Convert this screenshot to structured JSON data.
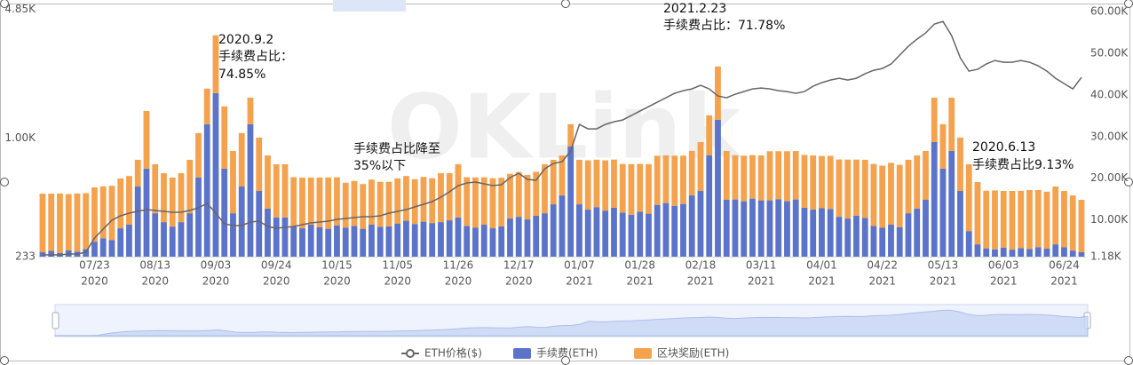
{
  "chart_data": {
    "type": "bar_line",
    "watermark": "OKLink",
    "ylog": true,
    "ylim": [
      233,
      4850
    ],
    "yticks": [
      233,
      {
        "value": 1000,
        "label": "1.00K"
      },
      {
        "value": 4850,
        "label": "4.85K"
      }
    ],
    "y2lim": [
      1180,
      60000
    ],
    "y2ticks": [
      {
        "value": 1180,
        "label": "1.18K"
      },
      {
        "value": 10000,
        "label": "10.00K"
      },
      {
        "value": 20000,
        "label": "20.00K"
      },
      {
        "value": 30000,
        "label": "30.00K"
      },
      {
        "value": 40000,
        "label": "40.00K"
      },
      {
        "value": 50000,
        "label": "50.00K"
      },
      {
        "value": 60000,
        "label": "60.00K"
      }
    ],
    "grid": false,
    "categories": [
      null,
      null,
      null,
      null,
      null,
      null,
      {
        "date": "07/23",
        "year": "2020"
      },
      null,
      null,
      null,
      null,
      null,
      null,
      {
        "date": "08/13",
        "year": "2020"
      },
      null,
      null,
      null,
      null,
      null,
      null,
      {
        "date": "09/03",
        "year": "2020"
      },
      null,
      null,
      null,
      null,
      null,
      null,
      {
        "date": "09/24",
        "year": "2020"
      },
      null,
      null,
      null,
      null,
      null,
      null,
      {
        "date": "10/15",
        "year": "2020"
      },
      null,
      null,
      null,
      null,
      null,
      null,
      {
        "date": "11/05",
        "year": "2020"
      },
      null,
      null,
      null,
      null,
      null,
      null,
      {
        "date": "11/26",
        "year": "2020"
      },
      null,
      null,
      null,
      null,
      null,
      null,
      {
        "date": "12/17",
        "year": "2020"
      },
      null,
      null,
      null,
      null,
      null,
      null,
      {
        "date": "01/07",
        "year": "2021"
      },
      null,
      null,
      null,
      null,
      null,
      null,
      {
        "date": "01/28",
        "year": "2021"
      },
      null,
      null,
      null,
      null,
      null,
      null,
      {
        "date": "02/18",
        "year": "2021"
      },
      null,
      null,
      null,
      null,
      null,
      null,
      {
        "date": "03/11",
        "year": "2021"
      },
      null,
      null,
      null,
      null,
      null,
      null,
      {
        "date": "04/01",
        "year": "2021"
      },
      null,
      null,
      null,
      null,
      null,
      null,
      {
        "date": "04/22",
        "year": "2021"
      },
      null,
      null,
      null,
      null,
      null,
      null,
      {
        "date": "05/13",
        "year": "2021"
      },
      null,
      null,
      null,
      null,
      null,
      null,
      {
        "date": "06/03",
        "year": "2021"
      },
      null,
      null,
      null,
      null,
      null,
      null,
      {
        "date": "06/24",
        "year": "2021"
      },
      null,
      null
    ],
    "series": [
      {
        "name": "ETH价格($)",
        "color": "#666666",
        "axis": "y2",
        "values": [
          1606,
          1606,
          1606,
          1819,
          1819,
          2245,
          5653,
          7783,
          9913,
          10978,
          11617,
          12043,
          12469,
          12256,
          12043,
          11830,
          11830,
          12256,
          12895,
          13960,
          11617,
          9061,
          8635,
          8635,
          9487,
          9700,
          8422,
          7996,
          8209,
          8422,
          8848,
          9274,
          9487,
          9700,
          10126,
          10339,
          10552,
          10765,
          10765,
          10978,
          11617,
          12043,
          12469,
          13108,
          13747,
          14386,
          15451,
          16729,
          18220,
          18859,
          19072,
          18646,
          18220,
          18433,
          20137,
          21202,
          19711,
          19498,
          22267,
          23545,
          23971,
          26527,
          32917,
          31852,
          31852,
          32917,
          33556,
          33982,
          35047,
          36112,
          37177,
          38242,
          39307,
          40372,
          41011,
          41437,
          42289,
          41437,
          39733,
          39307,
          40159,
          40798,
          41437,
          41650,
          41437,
          41011,
          40798,
          40372,
          40798,
          42076,
          42928,
          43567,
          43993,
          43567,
          43993,
          45058,
          45910,
          46336,
          47401,
          49531,
          51661,
          53365,
          54856,
          56986,
          57625,
          54217,
          48892,
          45697,
          46123,
          47401,
          48253,
          47827,
          47827,
          48253,
          47827,
          46975,
          45697,
          43993,
          42715,
          41437,
          44206
        ]
      },
      {
        "name": "手续费(ETH)",
        "color": "#5b73c9",
        "values": [
          246,
          250,
          244,
          252,
          248,
          256,
          280,
          292,
          286,
          330,
          345,
          551,
          686,
          397,
          356,
          337,
          356,
          397,
          615,
          1184,
          1734,
          686,
          397,
          551,
          1184,
          522,
          420,
          377,
          377,
          340,
          330,
          345,
          335,
          328,
          342,
          332,
          340,
          328,
          345,
          336,
          338,
          350,
          362,
          348,
          358,
          352,
          356,
          364,
          377,
          340,
          332,
          345,
          330,
          338,
          372,
          380,
          368,
          385,
          397,
          443,
          494,
          901,
          443,
          415,
          428,
          410,
          425,
          400,
          390,
          405,
          395,
          440,
          450,
          435,
          445,
          494,
          522,
          807,
          1250,
          468,
          470,
          460,
          475,
          465,
          465,
          472,
          460,
          470,
          425,
          415,
          422,
          418,
          380,
          372,
          385,
          375,
          340,
          332,
          345,
          335,
          397,
          420,
          468,
          951,
          686,
          853,
          522,
          319,
          271,
          258,
          255,
          260,
          254,
          259,
          256,
          262,
          257,
          271,
          262,
          251,
          246
        ]
      },
      {
        "name": "区块奖励(ETH)",
        "color": "#f5a24e",
        "values": [
          259,
          255,
          262,
          250,
          258,
          252,
          265,
          260,
          270,
          278,
          282,
          214,
          707,
          327,
          293,
          278,
          293,
          368,
          447,
          649,
          1790,
          787,
          456,
          511,
          457,
          483,
          387,
          347,
          347,
          278,
          285,
          270,
          280,
          288,
          275,
          245,
          250,
          240,
          255,
          248,
          246,
          259,
          265,
          255,
          262,
          258,
          293,
          285,
          347,
          278,
          284,
          272,
          280,
          276,
          272,
          278,
          268,
          275,
          327,
          322,
          313,
          283,
          322,
          345,
          338,
          350,
          342,
          327,
          335,
          322,
          330,
          364,
          358,
          370,
          360,
          359,
          429,
          514,
          1154,
          385,
          339,
          345,
          335,
          342,
          385,
          378,
          390,
          382,
          387,
          392,
          380,
          385,
          388,
          395,
          382,
          390,
          387,
          380,
          392,
          384,
          368,
          387,
          385,
          690,
          498,
          788,
          483,
          405,
          311,
          265,
          270,
          262,
          268,
          264,
          272,
          266,
          260,
          280,
          260,
          243,
          222
        ]
      }
    ],
    "annotations": [
      {
        "lines": [
          "2020.9.2",
          "手续费占比：",
          "74.85%"
        ]
      },
      {
        "lines": [
          "手续费占比降至",
          "35%以下"
        ]
      },
      {
        "lines": [
          "2021.2.23",
          "手续费占比：71.78%"
        ]
      },
      {
        "lines": [
          "2020.6.13",
          "手续费占比9.13%"
        ]
      }
    ]
  }
}
